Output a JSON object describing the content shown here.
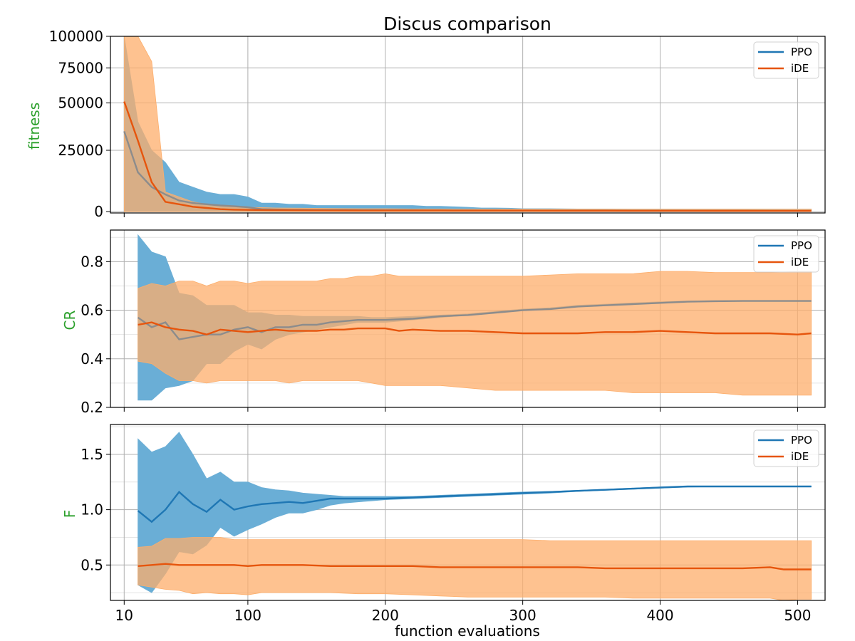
{
  "figure": {
    "title": "Discus comparison",
    "xlabel": "function evaluations"
  },
  "colors": {
    "ppo": "#1f77b4",
    "ppo_band": "#6aaed6",
    "ide": "#e6550d",
    "ide_band": "#fdae6b",
    "ylabel": "#2ca02c"
  },
  "chart_data": [
    {
      "type": "line",
      "ylabel": "fitness",
      "yscale": "symlog-like",
      "xlim": [
        0,
        520
      ],
      "ylim": [
        -500,
        100000
      ],
      "xticks": [
        10,
        100,
        200,
        300,
        400,
        500
      ],
      "yticks": [
        0,
        25000,
        50000,
        75000,
        100000
      ],
      "ytick_labels": [
        "0",
        "25000",
        "50000",
        "75000",
        "100000"
      ],
      "grid": true,
      "legend": {
        "position": "top-right",
        "entries": [
          "PPO",
          "iDE"
        ]
      },
      "series": [
        {
          "name": "PPO",
          "x": [
            10,
            20,
            30,
            40,
            50,
            60,
            70,
            80,
            90,
            100,
            110,
            120,
            130,
            140,
            150,
            160,
            170,
            180,
            190,
            200,
            210,
            220,
            230,
            240,
            250,
            260,
            270,
            280,
            290,
            300,
            320,
            340,
            360,
            380,
            400,
            420,
            440,
            460,
            480,
            500,
            510
          ],
          "y": [
            35000,
            16000,
            10000,
            7000,
            4500,
            3500,
            3000,
            2500,
            2200,
            1800,
            1000,
            900,
            800,
            800,
            700,
            700,
            700,
            650,
            650,
            600,
            600,
            600,
            550,
            550,
            500,
            500,
            450,
            450,
            400,
            400,
            380,
            360,
            350,
            340,
            330,
            320,
            310,
            300,
            300,
            290,
            290
          ],
          "upper": [
            100000,
            40000,
            25000,
            20000,
            12000,
            10000,
            8000,
            7000,
            7000,
            6000,
            3500,
            3500,
            3000,
            3000,
            2500,
            2500,
            2500,
            2500,
            2500,
            2500,
            2500,
            2500,
            2200,
            2200,
            2000,
            1800,
            1500,
            1500,
            1400,
            1200,
            1200,
            1100,
            1100,
            1000,
            1000,
            1000,
            1000,
            1000,
            1000,
            1000,
            1000
          ],
          "lower": [
            0,
            0,
            0,
            0,
            0,
            0,
            0,
            0,
            0,
            0,
            0,
            0,
            0,
            0,
            0,
            0,
            0,
            0,
            0,
            0,
            0,
            0,
            0,
            0,
            0,
            0,
            0,
            0,
            0,
            0,
            0,
            0,
            0,
            0,
            0,
            0,
            0,
            0,
            0,
            0,
            0
          ]
        },
        {
          "name": "iDE",
          "x": [
            10,
            20,
            30,
            40,
            50,
            60,
            70,
            80,
            90,
            100,
            120,
            140,
            160,
            180,
            200,
            220,
            240,
            260,
            280,
            300,
            320,
            340,
            360,
            380,
            400,
            420,
            440,
            460,
            480,
            500,
            510
          ],
          "y": [
            51000,
            30000,
            12000,
            4000,
            3000,
            2000,
            1500,
            1000,
            800,
            700,
            600,
            550,
            500,
            480,
            460,
            450,
            440,
            430,
            420,
            410,
            400,
            390,
            380,
            370,
            360,
            350,
            340,
            330,
            320,
            310,
            300
          ],
          "upper": [
            100000,
            100000,
            80000,
            8000,
            6000,
            4000,
            3000,
            2500,
            2000,
            1800,
            1500,
            1400,
            1300,
            1200,
            1200,
            1100,
            1100,
            1000,
            1000,
            1000,
            1000,
            1000,
            1000,
            1000,
            1000,
            1000,
            1000,
            1000,
            1000,
            1000,
            1000
          ],
          "lower": [
            0,
            0,
            0,
            0,
            0,
            0,
            0,
            0,
            0,
            0,
            0,
            0,
            0,
            0,
            0,
            0,
            0,
            0,
            0,
            0,
            0,
            0,
            0,
            0,
            0,
            0,
            0,
            0,
            0,
            0,
            0
          ]
        }
      ]
    },
    {
      "type": "line",
      "ylabel": "CR",
      "xlim": [
        0,
        520
      ],
      "ylim": [
        0.2,
        0.93
      ],
      "xticks": [
        10,
        100,
        200,
        300,
        400,
        500
      ],
      "yticks": [
        0.2,
        0.4,
        0.6,
        0.8
      ],
      "ytick_labels": [
        "0.2",
        "0.4",
        "0.6",
        "0.8"
      ],
      "minor_yticks": [
        0.3,
        0.5,
        0.7,
        0.9
      ],
      "grid": true,
      "legend": {
        "position": "top-right",
        "entries": [
          "PPO",
          "iDE"
        ]
      },
      "series": [
        {
          "name": "PPO",
          "x": [
            20,
            30,
            40,
            50,
            60,
            70,
            80,
            90,
            100,
            110,
            120,
            130,
            140,
            150,
            160,
            170,
            180,
            190,
            200,
            220,
            240,
            260,
            280,
            300,
            320,
            340,
            360,
            380,
            400,
            420,
            440,
            460,
            480,
            500,
            510
          ],
          "y": [
            0.57,
            0.53,
            0.55,
            0.48,
            0.49,
            0.5,
            0.5,
            0.52,
            0.53,
            0.51,
            0.53,
            0.53,
            0.54,
            0.54,
            0.55,
            0.555,
            0.56,
            0.56,
            0.56,
            0.565,
            0.575,
            0.58,
            0.59,
            0.6,
            0.605,
            0.615,
            0.62,
            0.625,
            0.63,
            0.635,
            0.637,
            0.638,
            0.638,
            0.638,
            0.638
          ],
          "upper": [
            0.91,
            0.84,
            0.82,
            0.67,
            0.66,
            0.62,
            0.62,
            0.62,
            0.59,
            0.59,
            0.58,
            0.58,
            0.575,
            0.575,
            0.575,
            0.575,
            0.575,
            0.57,
            0.57,
            0.575,
            0.58,
            0.585,
            0.595,
            0.605,
            0.61,
            0.62,
            0.625,
            0.63,
            0.635,
            0.638,
            0.64,
            0.64,
            0.64,
            0.64,
            0.64
          ],
          "lower": [
            0.23,
            0.23,
            0.28,
            0.29,
            0.31,
            0.38,
            0.38,
            0.43,
            0.46,
            0.44,
            0.48,
            0.5,
            0.51,
            0.52,
            0.53,
            0.54,
            0.55,
            0.55,
            0.55,
            0.56,
            0.57,
            0.58,
            0.59,
            0.6,
            0.605,
            0.615,
            0.62,
            0.625,
            0.63,
            0.635,
            0.637,
            0.638,
            0.638,
            0.638,
            0.638
          ]
        },
        {
          "name": "iDE",
          "x": [
            20,
            30,
            40,
            50,
            60,
            70,
            80,
            90,
            100,
            110,
            120,
            130,
            140,
            150,
            160,
            170,
            180,
            190,
            200,
            210,
            220,
            240,
            260,
            280,
            300,
            320,
            340,
            360,
            380,
            400,
            420,
            440,
            460,
            480,
            500,
            510
          ],
          "y": [
            0.54,
            0.55,
            0.53,
            0.52,
            0.515,
            0.5,
            0.52,
            0.515,
            0.51,
            0.515,
            0.52,
            0.515,
            0.515,
            0.515,
            0.52,
            0.52,
            0.525,
            0.525,
            0.525,
            0.515,
            0.52,
            0.515,
            0.515,
            0.51,
            0.505,
            0.505,
            0.505,
            0.51,
            0.51,
            0.515,
            0.51,
            0.505,
            0.505,
            0.505,
            0.5,
            0.505
          ],
          "upper": [
            0.69,
            0.71,
            0.7,
            0.72,
            0.72,
            0.7,
            0.72,
            0.72,
            0.71,
            0.72,
            0.72,
            0.72,
            0.72,
            0.72,
            0.73,
            0.73,
            0.74,
            0.74,
            0.75,
            0.74,
            0.74,
            0.74,
            0.74,
            0.74,
            0.74,
            0.745,
            0.75,
            0.75,
            0.75,
            0.76,
            0.76,
            0.755,
            0.755,
            0.755,
            0.76,
            0.76
          ],
          "lower": [
            0.39,
            0.38,
            0.34,
            0.31,
            0.31,
            0.3,
            0.31,
            0.31,
            0.31,
            0.31,
            0.31,
            0.3,
            0.31,
            0.31,
            0.31,
            0.31,
            0.31,
            0.3,
            0.29,
            0.29,
            0.29,
            0.29,
            0.28,
            0.27,
            0.27,
            0.27,
            0.27,
            0.27,
            0.26,
            0.26,
            0.26,
            0.26,
            0.25,
            0.25,
            0.25,
            0.25
          ]
        }
      ]
    },
    {
      "type": "line",
      "ylabel": "F",
      "xlim": [
        0,
        520
      ],
      "ylim": [
        0.18,
        1.77
      ],
      "xticks": [
        10,
        100,
        200,
        300,
        400,
        500
      ],
      "yticks": [
        0.5,
        1.0,
        1.5
      ],
      "ytick_labels": [
        "0.5",
        "1.0",
        "1.5"
      ],
      "minor_yticks": [
        0.25,
        0.75,
        1.25,
        1.75
      ],
      "grid": true,
      "legend": {
        "position": "top-right",
        "entries": [
          "PPO",
          "iDE"
        ]
      },
      "series": [
        {
          "name": "PPO",
          "x": [
            20,
            30,
            40,
            50,
            60,
            70,
            80,
            90,
            100,
            110,
            120,
            130,
            140,
            150,
            160,
            170,
            180,
            190,
            200,
            220,
            240,
            260,
            280,
            300,
            320,
            340,
            360,
            380,
            400,
            420,
            440,
            460,
            480,
            500,
            510
          ],
          "y": [
            0.99,
            0.89,
            1.0,
            1.16,
            1.05,
            0.98,
            1.09,
            1.0,
            1.03,
            1.05,
            1.06,
            1.07,
            1.06,
            1.08,
            1.1,
            1.1,
            1.1,
            1.1,
            1.1,
            1.11,
            1.12,
            1.13,
            1.14,
            1.15,
            1.16,
            1.17,
            1.18,
            1.19,
            1.2,
            1.21,
            1.21,
            1.21,
            1.21,
            1.21,
            1.21
          ],
          "upper": [
            1.64,
            1.52,
            1.57,
            1.7,
            1.5,
            1.28,
            1.34,
            1.25,
            1.25,
            1.2,
            1.18,
            1.17,
            1.15,
            1.14,
            1.13,
            1.12,
            1.12,
            1.12,
            1.12,
            1.12,
            1.13,
            1.14,
            1.15,
            1.16,
            1.165,
            1.175,
            1.185,
            1.195,
            1.205,
            1.212,
            1.212,
            1.212,
            1.212,
            1.212,
            1.212
          ],
          "lower": [
            0.32,
            0.25,
            0.42,
            0.62,
            0.6,
            0.68,
            0.84,
            0.76,
            0.82,
            0.87,
            0.93,
            0.97,
            0.97,
            1.0,
            1.04,
            1.06,
            1.07,
            1.08,
            1.09,
            1.1,
            1.11,
            1.12,
            1.13,
            1.14,
            1.15,
            1.165,
            1.175,
            1.185,
            1.195,
            1.205,
            1.208,
            1.208,
            1.208,
            1.208,
            1.208
          ]
        },
        {
          "name": "iDE",
          "x": [
            20,
            30,
            40,
            50,
            60,
            70,
            80,
            90,
            100,
            110,
            120,
            140,
            160,
            180,
            200,
            220,
            240,
            260,
            280,
            300,
            320,
            340,
            360,
            380,
            400,
            420,
            440,
            460,
            480,
            490,
            500,
            510
          ],
          "y": [
            0.49,
            0.5,
            0.51,
            0.5,
            0.5,
            0.5,
            0.5,
            0.5,
            0.49,
            0.5,
            0.5,
            0.5,
            0.49,
            0.49,
            0.49,
            0.49,
            0.48,
            0.48,
            0.48,
            0.48,
            0.48,
            0.48,
            0.47,
            0.47,
            0.47,
            0.47,
            0.47,
            0.47,
            0.48,
            0.46,
            0.46,
            0.46
          ],
          "upper": [
            0.66,
            0.67,
            0.74,
            0.74,
            0.75,
            0.75,
            0.75,
            0.73,
            0.73,
            0.73,
            0.73,
            0.73,
            0.73,
            0.73,
            0.73,
            0.73,
            0.73,
            0.73,
            0.73,
            0.73,
            0.72,
            0.72,
            0.72,
            0.72,
            0.72,
            0.72,
            0.72,
            0.72,
            0.72,
            0.72,
            0.72,
            0.72
          ],
          "lower": [
            0.32,
            0.3,
            0.28,
            0.27,
            0.24,
            0.25,
            0.24,
            0.24,
            0.23,
            0.25,
            0.25,
            0.25,
            0.25,
            0.24,
            0.24,
            0.23,
            0.22,
            0.21,
            0.21,
            0.21,
            0.21,
            0.21,
            0.21,
            0.2,
            0.2,
            0.2,
            0.2,
            0.2,
            0.2,
            0.18,
            0.19,
            0.19
          ]
        }
      ]
    }
  ]
}
